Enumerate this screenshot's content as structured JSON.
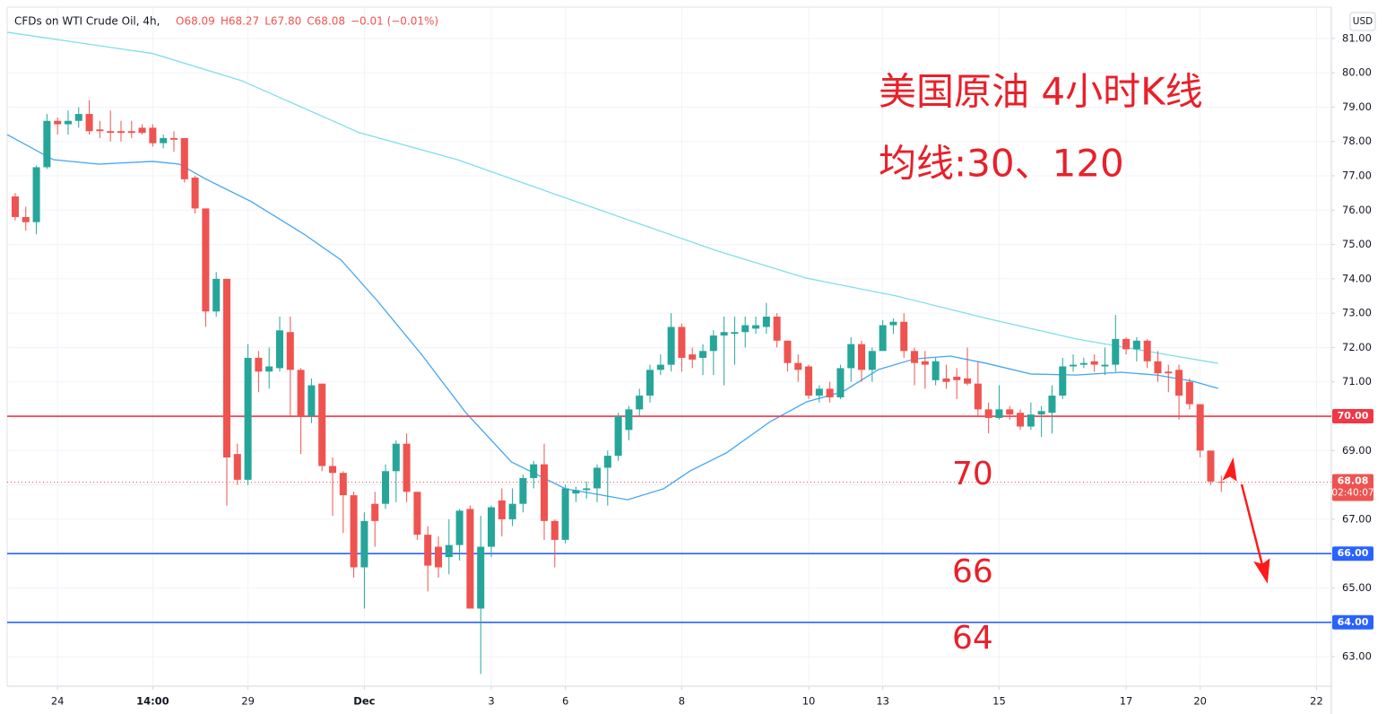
{
  "chart_data": {
    "type": "candlestick",
    "header": "CFDs on WTI Crude Oil, 4h,",
    "ohlc_text": [
      "O68.09",
      "H68.27",
      "L67.80",
      "C68.08",
      "−0.01 (−0.01%)"
    ],
    "currency": "USD",
    "title": "美国原油 4小时K线",
    "subtitle": "均线:30、120",
    "annotations": [
      "70",
      "66",
      "64"
    ],
    "up_color": "#26a69a",
    "down_color": "#ef5350",
    "open": [
      76.4,
      75.8,
      75.65,
      77.25,
      78.6,
      78.5,
      78.6,
      78.8,
      78.35,
      78.3,
      78.3,
      78.3,
      78.4,
      78.4,
      77.95,
      78.1,
      78.1,
      76.95,
      76.05,
      73.05,
      74.0,
      68.9,
      68.15,
      71.7,
      71.3,
      71.4,
      72.45,
      71.35,
      70.0,
      70.95,
      68.55,
      68.35,
      67.7,
      65.6,
      67.45,
      67.45,
      68.4,
      69.2,
      67.8,
      66.55,
      66.2,
      65.9,
      66.25,
      67.3,
      64.4,
      66.2,
      67.55,
      67.0,
      67.45,
      68.2,
      68.6,
      66.95,
      66.4,
      67.75,
      67.85,
      67.9,
      68.5,
      68.85,
      69.6,
      70.2,
      70.6,
      71.35,
      71.5,
      72.6,
      71.8,
      71.7,
      71.9,
      72.35,
      72.4,
      72.45,
      72.55,
      72.6,
      72.9,
      72.2,
      71.55,
      71.45,
      70.6,
      70.8,
      70.55,
      71.4,
      72.1,
      71.35,
      71.9,
      72.65,
      72.75,
      71.9,
      71.6,
      71.05,
      71.1,
      71.15,
      71.1,
      70.95,
      70.2,
      69.95,
      70.2,
      70.1,
      69.7,
      70.05,
      70.1,
      70.6,
      71.45,
      71.5,
      71.6,
      71.45,
      71.5,
      72.25,
      71.95,
      72.2,
      71.6,
      71.3,
      71.35,
      71.0,
      70.35,
      69.0,
      68.09
    ],
    "high": [
      76.5,
      76.1,
      77.3,
      78.8,
      78.7,
      78.9,
      79.0,
      79.2,
      78.6,
      78.9,
      78.6,
      78.6,
      78.5,
      78.5,
      78.2,
      78.3,
      78.1,
      77.0,
      76.05,
      74.2,
      74.0,
      69.2,
      72.1,
      71.9,
      72.0,
      72.9,
      72.9,
      71.4,
      71.1,
      70.95,
      68.8,
      68.4,
      67.8,
      67.2,
      67.8,
      68.6,
      69.3,
      69.5,
      67.8,
      66.8,
      66.5,
      67.0,
      67.3,
      67.4,
      67.1,
      67.4,
      67.9,
      67.9,
      68.3,
      68.7,
      69.2,
      67.0,
      68.0,
      67.95,
      68.1,
      68.6,
      69.0,
      70.1,
      70.3,
      70.8,
      71.5,
      71.8,
      73.0,
      72.7,
      72.0,
      72.1,
      72.5,
      72.9,
      72.9,
      72.9,
      72.9,
      73.3,
      73.0,
      72.2,
      71.8,
      71.5,
      70.9,
      71.0,
      71.5,
      72.3,
      72.2,
      72.0,
      72.8,
      72.85,
      73.0,
      72.0,
      71.9,
      71.7,
      71.5,
      71.4,
      72.0,
      71.6,
      70.4,
      70.9,
      70.3,
      70.2,
      70.4,
      70.3,
      70.9,
      71.7,
      71.8,
      71.7,
      71.8,
      72.0,
      72.95,
      72.3,
      72.3,
      72.25,
      71.9,
      71.5,
      71.5,
      71.1,
      70.35,
      69.0,
      68.27
    ],
    "low": [
      75.7,
      75.4,
      75.3,
      77.2,
      78.2,
      78.2,
      78.4,
      78.2,
      78.1,
      78.0,
      78.0,
      78.1,
      78.2,
      77.85,
      77.8,
      77.7,
      76.8,
      75.9,
      72.6,
      72.9,
      67.4,
      68.0,
      68.0,
      70.7,
      70.8,
      71.3,
      70.0,
      68.9,
      69.8,
      68.4,
      67.1,
      66.6,
      65.3,
      64.4,
      66.2,
      67.3,
      67.5,
      67.5,
      66.4,
      64.9,
      65.3,
      65.4,
      65.8,
      64.4,
      62.5,
      65.9,
      66.5,
      66.8,
      67.2,
      67.9,
      66.4,
      65.6,
      66.3,
      67.5,
      67.6,
      67.5,
      67.4,
      68.7,
      69.3,
      70.0,
      70.4,
      71.2,
      71.3,
      71.3,
      71.4,
      71.2,
      71.2,
      70.9,
      71.5,
      72.0,
      72.4,
      72.4,
      72.0,
      71.3,
      71.0,
      70.5,
      70.4,
      70.4,
      70.5,
      71.0,
      71.0,
      71.0,
      71.9,
      72.4,
      71.7,
      70.9,
      70.8,
      70.9,
      70.8,
      70.5,
      70.9,
      70.0,
      69.5,
      69.9,
      69.9,
      69.6,
      69.6,
      69.4,
      69.5,
      70.5,
      71.3,
      71.4,
      71.3,
      71.2,
      71.3,
      71.8,
      71.6,
      71.4,
      71.0,
      70.7,
      69.9,
      70.2,
      68.8,
      68.0,
      67.8
    ],
    "close": [
      75.8,
      75.65,
      77.25,
      78.6,
      78.5,
      78.6,
      78.8,
      78.3,
      78.3,
      78.25,
      78.25,
      78.25,
      78.25,
      77.95,
      78.1,
      78.05,
      76.9,
      76.05,
      73.05,
      74.0,
      68.8,
      68.15,
      71.7,
      71.3,
      71.45,
      72.5,
      71.35,
      70.0,
      70.9,
      68.55,
      68.35,
      67.7,
      65.6,
      66.95,
      66.95,
      68.4,
      69.2,
      67.8,
      66.55,
      65.65,
      65.6,
      66.25,
      67.25,
      64.4,
      66.2,
      67.35,
      67.0,
      67.45,
      68.2,
      68.6,
      66.95,
      66.4,
      67.9,
      67.85,
      67.9,
      68.5,
      68.85,
      70.0,
      70.2,
      70.6,
      71.35,
      71.5,
      72.6,
      71.7,
      71.65,
      71.9,
      72.35,
      72.45,
      72.45,
      72.65,
      72.65,
      72.9,
      72.2,
      71.55,
      71.35,
      70.6,
      70.8,
      70.55,
      71.4,
      72.1,
      71.35,
      71.9,
      72.65,
      72.75,
      71.9,
      71.55,
      71.5,
      71.6,
      71.0,
      71.05,
      70.95,
      70.2,
      69.95,
      70.2,
      70.05,
      69.7,
      70.05,
      70.15,
      70.6,
      71.45,
      71.5,
      71.55,
      71.5,
      71.5,
      72.25,
      71.95,
      72.2,
      71.6,
      71.25,
      71.25,
      70.6,
      70.35,
      69.0,
      68.1,
      68.08
    ],
    "lines": [
      {
        "color": "#80deea",
        "x": [
          -0.76,
          13,
          21.4,
          32.5,
          41.8,
          49.4,
          57.9,
          66.4,
          74.8,
          83.3,
          91.8,
          100.3,
          108.7,
          113.7
        ],
        "values": [
          81.18,
          80.56,
          79.77,
          78.26,
          77.47,
          76.64,
          75.72,
          74.81,
          74.02,
          73.5,
          72.85,
          72.25,
          71.8,
          71.54
        ]
      },
      {
        "color": "#42a5f5",
        "x": [
          -0.76,
          3.6,
          7.9,
          13,
          15.5,
          18.05,
          22.3,
          27.4,
          30.8,
          34.2,
          38.4,
          42.6,
          46.9,
          52,
          57.9,
          61.3,
          63.8,
          67.2,
          71.4,
          74.8,
          78.2,
          81.6,
          85,
          88.4,
          91.8,
          96,
          100.3,
          104.5,
          107.9,
          111.3,
          113.7
        ],
        "values": [
          78.2,
          77.47,
          77.34,
          77.42,
          77.34,
          76.9,
          76.25,
          75.28,
          74.55,
          73.37,
          71.8,
          70.1,
          68.67,
          67.89,
          67.57,
          67.89,
          68.41,
          68.93,
          69.85,
          70.42,
          70.71,
          71.36,
          71.67,
          71.75,
          71.54,
          71.23,
          71.2,
          71.28,
          71.2,
          71.02,
          70.81
        ]
      }
    ],
    "levels": [
      {
        "value": 70,
        "label": "70.00",
        "color": "#f23645"
      },
      {
        "value": 66,
        "label": "66.00",
        "color": "#2962ff"
      },
      {
        "value": 64,
        "label": "64.00",
        "color": "#2962ff"
      }
    ],
    "price_line": {
      "value": 68.08,
      "label": "68.08",
      "countdown": "02:40:07",
      "color": "#ef5350"
    },
    "xlim": [
      -0.76,
      124.4
    ],
    "xticks": [
      {
        "value": 4,
        "label": "24"
      },
      {
        "value": 13,
        "label": "14:00"
      },
      {
        "value": 22,
        "label": "29"
      },
      {
        "value": 33,
        "label": "Dec"
      },
      {
        "value": 45,
        "label": "3"
      },
      {
        "value": 52,
        "label": "6"
      },
      {
        "value": 63,
        "label": "8"
      },
      {
        "value": 75,
        "label": "10"
      },
      {
        "value": 82,
        "label": "13"
      },
      {
        "value": 93,
        "label": "15"
      },
      {
        "value": 105,
        "label": "17"
      },
      {
        "value": 112,
        "label": "20"
      },
      {
        "value": 123,
        "label": "22"
      }
    ],
    "ylim": [
      62.14,
      81.91
    ],
    "yticks": [
      {
        "value": 63,
        "label": "63.00"
      },
      {
        "value": 64,
        "label": "64.00"
      },
      {
        "value": 65,
        "label": "65.00"
      },
      {
        "value": 66,
        "label": "66.00"
      },
      {
        "value": 67,
        "label": "67.00"
      },
      {
        "value": 68,
        "label": "68.00"
      },
      {
        "value": 69,
        "label": "69.00"
      },
      {
        "value": 70,
        "label": "70.00"
      },
      {
        "value": 71,
        "label": "71.00"
      },
      {
        "value": 72,
        "label": "72.00"
      },
      {
        "value": 73,
        "label": "73.00"
      },
      {
        "value": 74,
        "label": "74.00"
      },
      {
        "value": 75,
        "label": "75.00"
      },
      {
        "value": 76,
        "label": "76.00"
      },
      {
        "value": 77,
        "label": "77.00"
      },
      {
        "value": 78,
        "label": "78.00"
      },
      {
        "value": 79,
        "label": "79.00"
      },
      {
        "value": 80,
        "label": "80.00"
      },
      {
        "value": 81,
        "label": "81.00"
      }
    ]
  }
}
